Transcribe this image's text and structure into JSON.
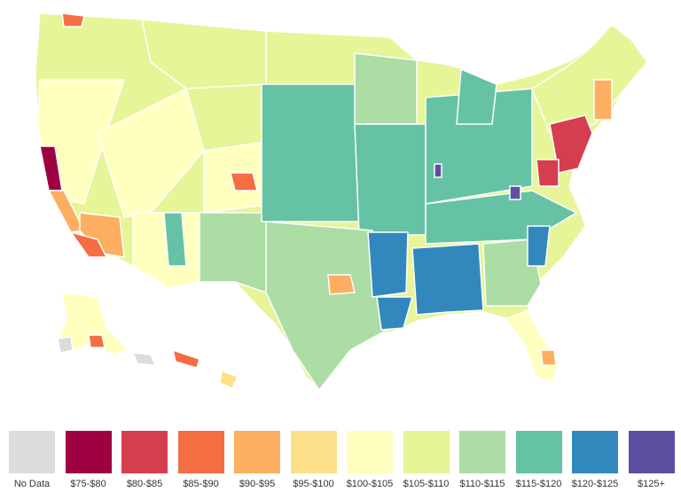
{
  "legend": [
    {
      "label": "No Data",
      "color": "#dcdcdc"
    },
    {
      "label": "$75-$80",
      "color": "#9e0142"
    },
    {
      "label": "$80-$85",
      "color": "#d53e4f"
    },
    {
      "label": "$85-$90",
      "color": "#f46d43"
    },
    {
      "label": "$90-$95",
      "color": "#fdae61"
    },
    {
      "label": "$95-$100",
      "color": "#fee08b"
    },
    {
      "label": "$100-$105",
      "color": "#ffffbf"
    },
    {
      "label": "$105-$110",
      "color": "#e6f598"
    },
    {
      "label": "$110-$115",
      "color": "#abdda4"
    },
    {
      "label": "$115-$120",
      "color": "#66c2a5"
    },
    {
      "label": "$120-$125",
      "color": "#3288bd"
    },
    {
      "label": "$125+",
      "color": "#5e4fa2"
    }
  ],
  "map": {
    "border_color": "#ffffff"
  }
}
